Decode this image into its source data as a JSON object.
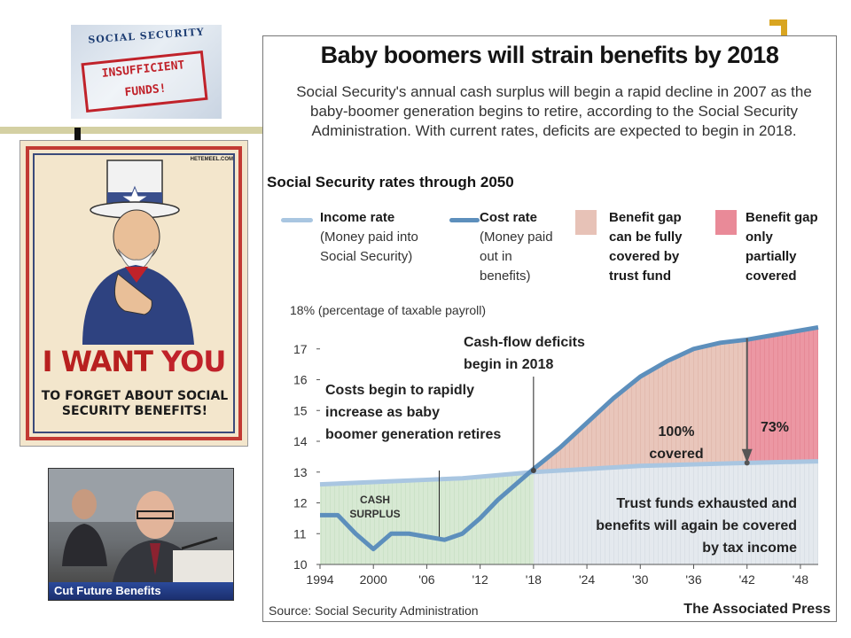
{
  "card": {
    "title": "SOCIAL SECURITY",
    "stamp_line1": "INSUFFICIENT",
    "stamp_line2": "FUNDS!"
  },
  "poster": {
    "site": "HETEMEEL.COM",
    "main_plain": "I WANT ",
    "main_accent": "YOU",
    "sub": "TO FORGET ABOUT SOCIAL SECURITY BENEFITS!"
  },
  "photo": {
    "caption": "Cut Future Benefits"
  },
  "colors": {
    "income": "#a9c6e1",
    "cost": "#5d8fbc",
    "gap_full": "#e7c2b7",
    "gap_partial": "#e98a98",
    "surplus": "#d5e8d2",
    "tax_area": "#dfe7ee"
  },
  "chart_data": {
    "type": "line",
    "title": "Baby boomers will strain benefits by 2018",
    "description": "Social Security's annual cash surplus will begin a rapid decline in 2007 as the baby-boomer generation begins to retire, according to the Social Security Administration. With current rates, deficits are expected to begin in 2018.",
    "subtitle": "Social Security rates through 2050",
    "ylabel": "18% (percentage of taxable payroll)",
    "xlim": [
      1994,
      2050
    ],
    "ylim": [
      10,
      18
    ],
    "x_ticks": [
      1994,
      2000,
      2006,
      2012,
      2018,
      2024,
      2030,
      2036,
      2042,
      2048
    ],
    "x_tick_labels": [
      "1994",
      "2000",
      "'06",
      "'12",
      "'18",
      "'24",
      "'30",
      "'36",
      "'42",
      "'48"
    ],
    "y_ticks": [
      10,
      11,
      12,
      13,
      14,
      15,
      16,
      17
    ],
    "y_tick_labels": [
      "10",
      "11",
      "12",
      "13",
      "14",
      "15",
      "16",
      "17"
    ],
    "legend": [
      {
        "key": "income",
        "title": "Income rate",
        "note": "(Money paid into Social Security)"
      },
      {
        "key": "cost",
        "title": "Cost rate",
        "note": "(Money paid out in benefits)"
      },
      {
        "key": "gap_full",
        "title": "Benefit gap can be fully covered by trust fund"
      },
      {
        "key": "gap_partial",
        "title": "Benefit gap only partially covered"
      }
    ],
    "series": [
      {
        "name": "Income rate",
        "x": [
          1994,
          1998,
          2002,
          2006,
          2010,
          2014,
          2018,
          2024,
          2030,
          2036,
          2042,
          2050
        ],
        "y": [
          12.6,
          12.65,
          12.7,
          12.75,
          12.8,
          12.9,
          13.0,
          13.1,
          13.2,
          13.25,
          13.3,
          13.35
        ]
      },
      {
        "name": "Cost rate",
        "x": [
          1994,
          1996,
          1998,
          2000,
          2002,
          2004,
          2006,
          2008,
          2010,
          2012,
          2014,
          2016,
          2018,
          2021,
          2024,
          2027,
          2030,
          2033,
          2036,
          2039,
          2042,
          2046,
          2050
        ],
        "y": [
          11.6,
          11.6,
          11.0,
          10.5,
          11.0,
          11.0,
          10.9,
          10.8,
          11.0,
          11.5,
          12.1,
          12.6,
          13.1,
          13.8,
          14.6,
          15.4,
          16.1,
          16.6,
          17.0,
          17.2,
          17.3,
          17.5,
          17.7
        ]
      }
    ],
    "annotations": {
      "cash_surplus": "CASH SURPLUS",
      "costs_rise": "Costs begin to rapidly increase as baby boomer generation retires",
      "deficits": "Cash-flow deficits begin in 2018",
      "covered_100": "100% covered",
      "covered_73": "73%",
      "exhausted": "Trust funds exhausted and benefits will again be covered by tax income"
    }
  },
  "footer": {
    "source": "Source: Social Security Administration",
    "credit": "The Associated Press"
  }
}
